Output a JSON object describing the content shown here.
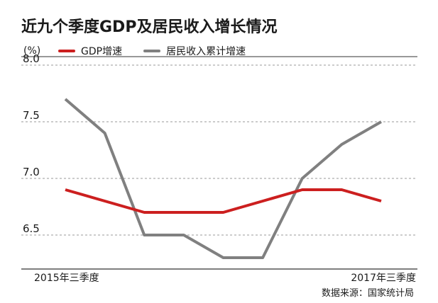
{
  "chart_data": {
    "type": "line",
    "title": "近九个季度GDP及居民收入增长情况",
    "ylabel": "(%)",
    "ylim": [
      6.2,
      8.0
    ],
    "yticks": [
      8.0,
      7.5,
      7.0,
      6.5
    ],
    "ytick_labels": [
      "8.0",
      "7.5",
      "7.0",
      "6.5"
    ],
    "x_count": 9,
    "x_tick_labels": {
      "first": "2015年三季度",
      "last": "2017年三季度"
    },
    "legend_position": "top",
    "grid": "dashed-horizontal",
    "series": [
      {
        "name": "GDP增速",
        "color": "#cc1f1f",
        "values": [
          6.9,
          6.8,
          6.7,
          6.7,
          6.7,
          6.8,
          6.9,
          6.9,
          6.8
        ]
      },
      {
        "name": "居民收入累计增速",
        "color": "#808080",
        "values": [
          7.7,
          7.4,
          6.5,
          6.5,
          6.3,
          6.3,
          7.0,
          7.3,
          7.5
        ]
      }
    ],
    "source": "数据来源：国家统计局"
  }
}
